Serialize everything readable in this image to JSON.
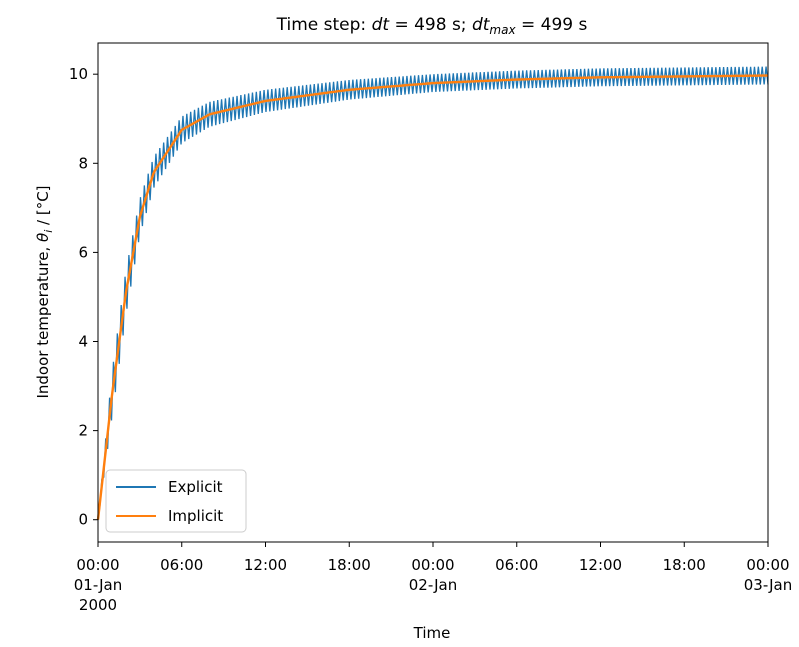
{
  "chart_data": {
    "type": "line",
    "title": {
      "prefix": "Time step: ",
      "dt_symbol": "dt",
      "dt_text": " = 498 s; ",
      "dtmax_symbol": "dt",
      "dtmax_sub": "max",
      "dtmax_text": " = 499 s"
    },
    "xlabel": "Time",
    "ylabel": {
      "prefix": "Indoor temperature, ",
      "symbol": "θ",
      "sub": "i",
      "suffix": " / [°C]"
    },
    "xlim": [
      0,
      48
    ],
    "ylim": [
      -0.5,
      10.7
    ],
    "x_unit": "hours from 2000-01-01 00:00",
    "x_ticks": [
      {
        "x": 0,
        "lines": [
          "00:00",
          "01-Jan",
          "2000"
        ]
      },
      {
        "x": 6,
        "lines": [
          "06:00"
        ]
      },
      {
        "x": 12,
        "lines": [
          "12:00"
        ]
      },
      {
        "x": 18,
        "lines": [
          "18:00"
        ]
      },
      {
        "x": 24,
        "lines": [
          "00:00",
          "02-Jan"
        ]
      },
      {
        "x": 30,
        "lines": [
          "06:00"
        ]
      },
      {
        "x": 36,
        "lines": [
          "12:00"
        ]
      },
      {
        "x": 42,
        "lines": [
          "18:00"
        ]
      },
      {
        "x": 48,
        "lines": [
          "00:00",
          "03-Jan"
        ]
      }
    ],
    "y_ticks": [
      {
        "y": 0,
        "label": "0"
      },
      {
        "y": 2,
        "label": "2"
      },
      {
        "y": 4,
        "label": "4"
      },
      {
        "y": 6,
        "label": "6"
      },
      {
        "y": 8,
        "label": "8"
      },
      {
        "y": 10,
        "label": "10"
      }
    ],
    "grid": false,
    "legend_position": "lower-left",
    "series": [
      {
        "name": "Explicit",
        "color": "#1f77b4",
        "style": "oscillating band around implicit curve",
        "x": [
          0,
          1,
          2,
          3,
          4,
          6,
          8,
          12,
          18,
          24,
          30,
          36,
          42,
          48
        ],
        "y": [
          0,
          2.8,
          5.1,
          6.8,
          7.8,
          8.75,
          9.1,
          9.4,
          9.65,
          9.8,
          9.88,
          9.93,
          9.95,
          9.97
        ],
        "oscillation_amplitude": [
          0,
          0.5,
          0.5,
          0.4,
          0.35,
          0.3,
          0.28,
          0.25,
          0.22,
          0.2,
          0.2,
          0.2,
          0.2,
          0.2
        ]
      },
      {
        "name": "Implicit",
        "color": "#ff7f0e",
        "x": [
          0,
          1,
          2,
          3,
          4,
          6,
          8,
          12,
          18,
          24,
          30,
          36,
          42,
          48
        ],
        "y": [
          0,
          2.8,
          5.1,
          6.8,
          7.8,
          8.75,
          9.1,
          9.4,
          9.65,
          9.8,
          9.88,
          9.93,
          9.95,
          9.97
        ]
      }
    ]
  }
}
